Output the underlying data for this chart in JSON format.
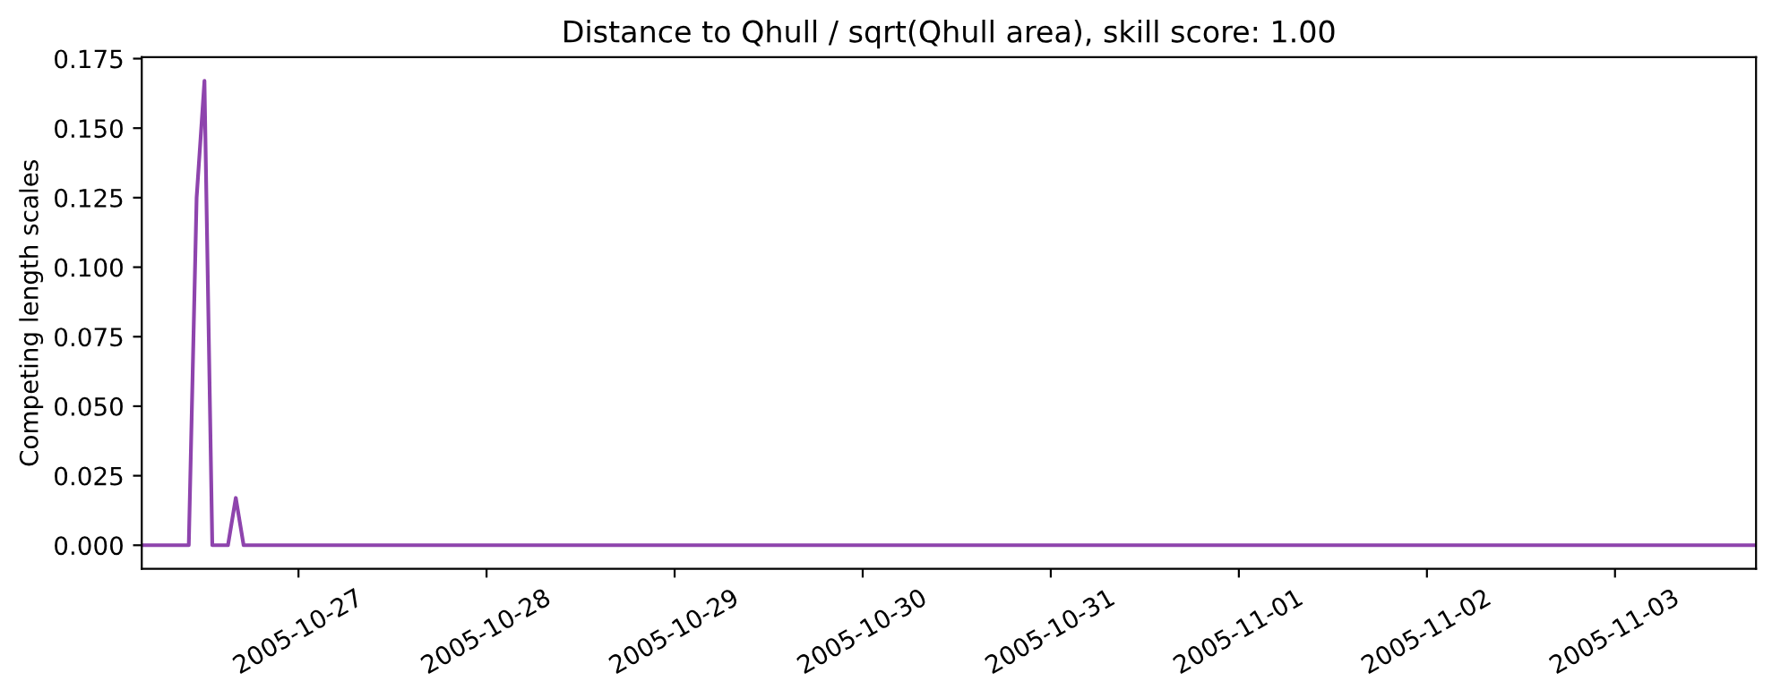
{
  "chart_data": {
    "type": "line",
    "title": "Distance to Qhull / sqrt(Qhull area), skill score: 1.00",
    "ylabel": "Competing length scales",
    "x": [
      "2005-10-26T04:00",
      "2005-10-26T10:00",
      "2005-10-26T11:00",
      "2005-10-26T12:00",
      "2005-10-26T13:00",
      "2005-10-26T15:00",
      "2005-10-26T16:00",
      "2005-10-26T17:00",
      "2005-11-03T18:00"
    ],
    "series": [
      {
        "color": "#8e44ad",
        "values": [
          0,
          0,
          0.125,
          0.167,
          0,
          0,
          0.017,
          0,
          0
        ]
      }
    ],
    "xlim": [
      "2005-10-26T04:00",
      "2005-11-03T18:00"
    ],
    "xticks": [
      "2005-10-27",
      "2005-10-28",
      "2005-10-29",
      "2005-10-30",
      "2005-10-31",
      "2005-11-01",
      "2005-11-02",
      "2005-11-03"
    ],
    "ylim": [
      -0.0085,
      0.1755
    ],
    "yticks": [
      {
        "value": 0,
        "label": "0.000"
      },
      {
        "value": 0.025,
        "label": "0.025"
      },
      {
        "value": 0.05,
        "label": "0.050"
      },
      {
        "value": 0.075,
        "label": "0.075"
      },
      {
        "value": 0.1,
        "label": "0.100"
      },
      {
        "value": 0.125,
        "label": "0.125"
      },
      {
        "value": 0.15,
        "label": "0.150"
      },
      {
        "value": 0.175,
        "label": "0.175"
      }
    ],
    "grid": false,
    "legend": false,
    "marker": "none",
    "line_style": "solid"
  }
}
